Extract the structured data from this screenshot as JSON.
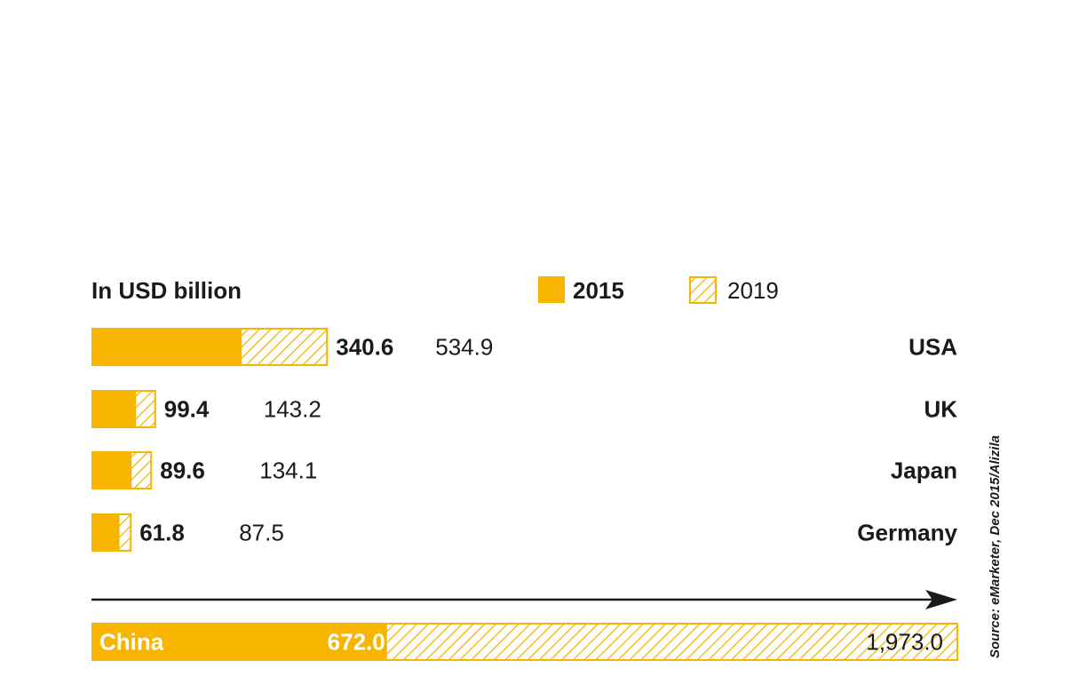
{
  "colors": {
    "accent": "#f7b500",
    "text": "#1a1a1a"
  },
  "unit_label": "In USD billion",
  "legend": {
    "label_2015": "2015",
    "label_2019": "2019"
  },
  "source": "Source: eMarketer, Dec 2015/Alizila",
  "chart_data": {
    "type": "bar",
    "orientation": "horizontal",
    "series": [
      {
        "name": "2015",
        "style": "solid"
      },
      {
        "name": "2019",
        "style": "hatched"
      }
    ],
    "rows": [
      {
        "country": "USA",
        "v2015": 340.6,
        "v2019": 534.9,
        "label2015": "340.6",
        "label2019": "534.9"
      },
      {
        "country": "UK",
        "v2015": 99.4,
        "v2019": 143.2,
        "label2015": "99.4",
        "label2019": "143.2"
      },
      {
        "country": "Japan",
        "v2015": 89.6,
        "v2019": 134.1,
        "label2015": "89.6",
        "label2019": "134.1"
      },
      {
        "country": "Germany",
        "v2015": 61.8,
        "v2019": 87.5,
        "label2015": "61.8",
        "label2019": "87.5"
      }
    ],
    "highlight": {
      "country": "China",
      "v2015": 672.0,
      "v2019": 1973.0,
      "label2015": "672.0",
      "label2019": "1,973.0"
    },
    "legend_position": "top-right",
    "grid": false
  }
}
